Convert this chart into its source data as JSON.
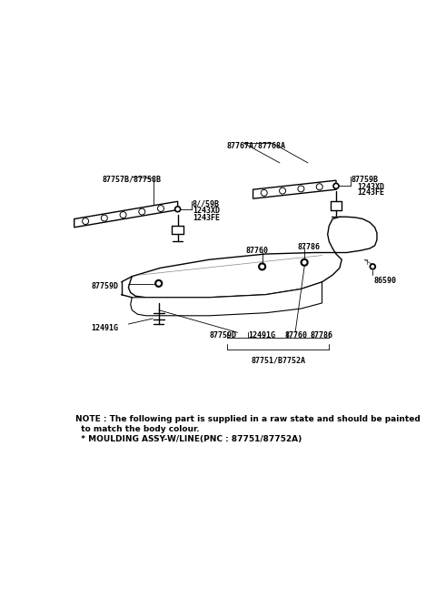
{
  "bg_color": "#ffffff",
  "line_color": "#000000",
  "text_color": "#000000",
  "fig_width": 4.8,
  "fig_height": 6.57,
  "dpi": 100,
  "note_line1": "NOTE : The following part is supplied in a raw state and should be painted",
  "note_line2": "  to match the body colour.",
  "note_line3": "  * MOULDING ASSY-W/LINE(PNC : 87751/87752A)"
}
